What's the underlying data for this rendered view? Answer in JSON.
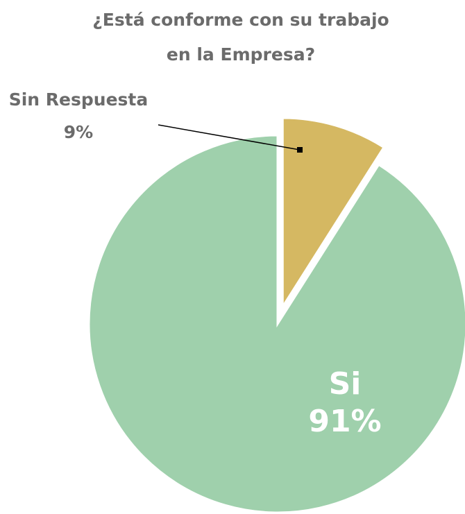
{
  "chart_data": {
    "type": "pie",
    "title": [
      "¿Está conforme con su trabajo",
      "en la Empresa?"
    ],
    "categories": [
      "Sin Respuesta",
      "Si"
    ],
    "values": [
      9,
      91
    ],
    "value_labels": [
      "9%",
      "91%"
    ],
    "colors": [
      "#d5b862",
      "#9fd0ac"
    ],
    "explode": [
      true,
      false
    ]
  }
}
